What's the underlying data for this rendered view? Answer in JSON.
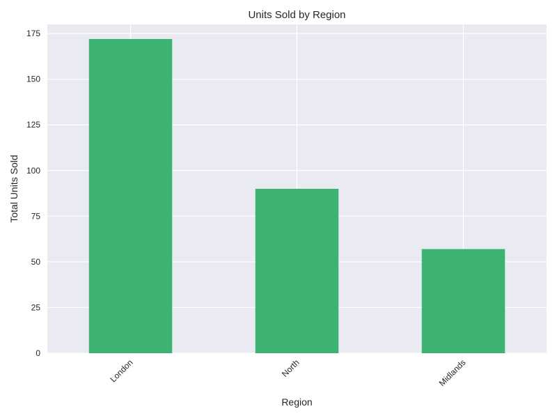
{
  "chart_data": {
    "type": "bar",
    "title": "Units Sold by Region",
    "xlabel": "Region",
    "ylabel": "Total Units Sold",
    "categories": [
      "London",
      "North",
      "Midlands"
    ],
    "values": [
      172,
      90,
      57
    ],
    "ylim": [
      0,
      180
    ],
    "yticks": [
      0,
      25,
      50,
      75,
      100,
      125,
      150,
      175
    ],
    "grid": true,
    "legend": "none",
    "bar_color": "#3cb371",
    "background_color": "#eaeaf2",
    "grid_color": "#ffffff"
  }
}
